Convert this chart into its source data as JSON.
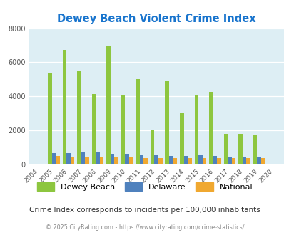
{
  "title": "Dewey Beach Violent Crime Index",
  "years": [
    2004,
    2005,
    2006,
    2007,
    2008,
    2009,
    2010,
    2011,
    2012,
    2013,
    2014,
    2015,
    2016,
    2017,
    2018,
    2019,
    2020
  ],
  "dewey_beach": [
    0,
    5400,
    6750,
    5500,
    4150,
    6950,
    4050,
    5000,
    2050,
    4900,
    3050,
    4100,
    4250,
    1800,
    1800,
    1750,
    0
  ],
  "delaware": [
    0,
    650,
    680,
    690,
    770,
    640,
    610,
    590,
    590,
    500,
    490,
    530,
    510,
    480,
    430,
    440,
    0
  ],
  "national": [
    0,
    520,
    480,
    480,
    460,
    430,
    420,
    390,
    370,
    370,
    370,
    380,
    390,
    390,
    380,
    370,
    0
  ],
  "dewey_color": "#8dc63f",
  "delaware_color": "#4f81bd",
  "national_color": "#f0a830",
  "plot_bg": "#ddeef4",
  "title_color": "#1874cd",
  "footer_text": "© 2025 CityRating.com - https://www.cityrating.com/crime-statistics/",
  "subtitle": "Crime Index corresponds to incidents per 100,000 inhabitants",
  "ylim": [
    0,
    8000
  ],
  "yticks": [
    0,
    2000,
    4000,
    6000,
    8000
  ]
}
